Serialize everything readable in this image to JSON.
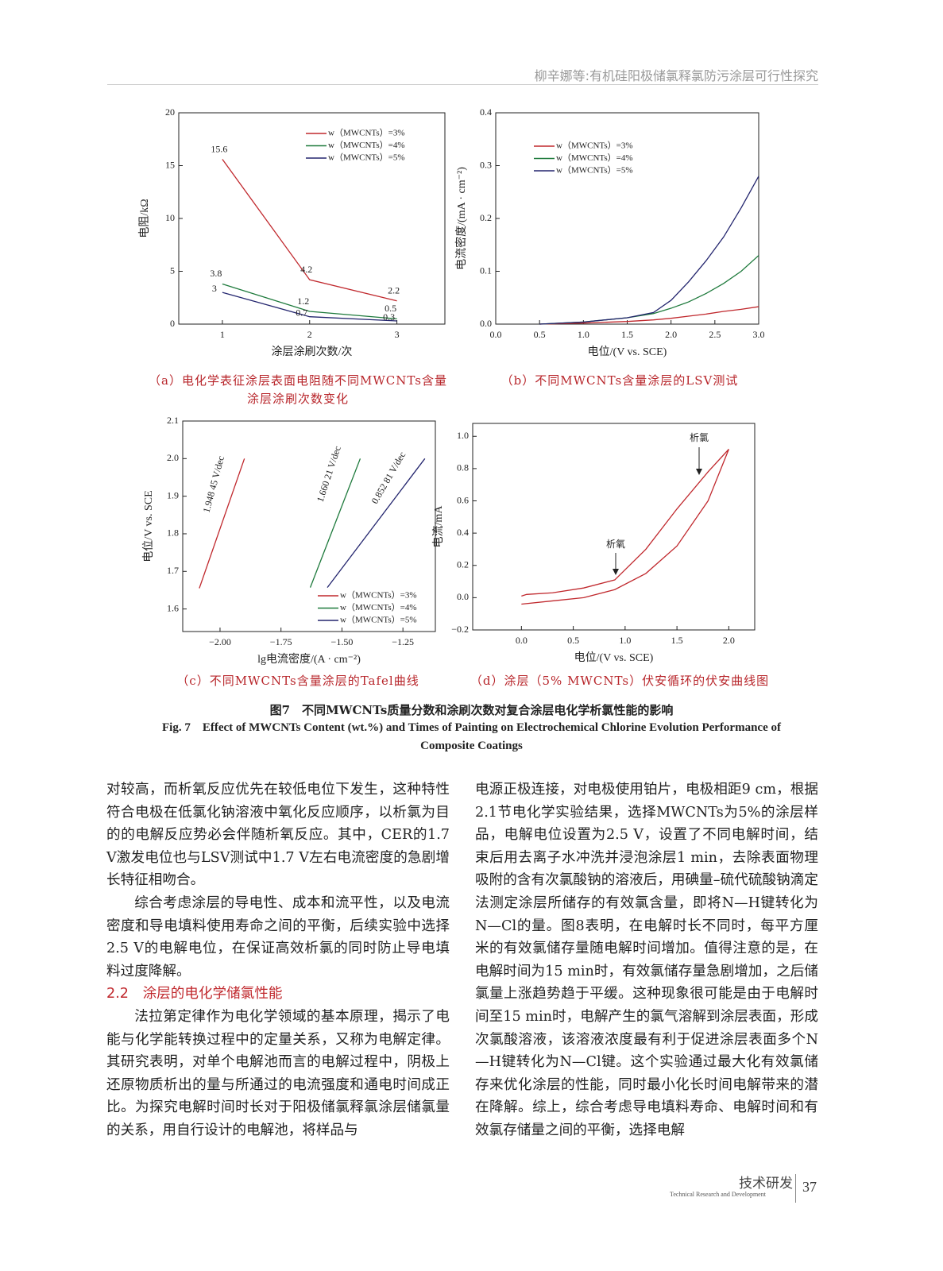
{
  "header": {
    "running_title": "柳辛娜等:有机硅阳极储氯释氯防污涂层可行性探究"
  },
  "chart_data": [
    {
      "type": "line",
      "caption": "（a）电化学表征涂层表面电阻随不同MWCNTs含量涂层涂刷次数变化",
      "x_label": "涂层涂刷次数/次",
      "y_label": "电阻/kΩ",
      "x": [
        1,
        2,
        3
      ],
      "series": [
        {
          "name": "w（MWCNTs）=3%",
          "color": "#c0282d",
          "values": [
            15.6,
            4.2,
            2.2
          ]
        },
        {
          "name": "w（MWCNTs）=4%",
          "color": "#1e7a3c",
          "values": [
            3.8,
            1.2,
            0.5
          ]
        },
        {
          "name": "w（MWCNTs）=5%",
          "color": "#23256e",
          "values": [
            3,
            0.7,
            0.3
          ]
        }
      ],
      "xlim": [
        0.5,
        3.55
      ],
      "xticks": [
        1,
        2,
        3
      ],
      "ylim": [
        0,
        20
      ],
      "yticks": [
        0,
        5,
        10,
        15,
        20
      ],
      "data_labels": true,
      "legend": "upper right"
    },
    {
      "type": "line",
      "caption": "（b）不同MWCNTs含量涂层的LSV测试",
      "x_label": "电位/(V vs. SCE)",
      "y_label": "电流密度/(mA · cm⁻²)",
      "x": [
        0.5,
        1.0,
        1.5,
        1.8,
        2.0,
        2.2,
        2.4,
        2.6,
        2.8,
        3.0
      ],
      "series": [
        {
          "name": "w（MWCNTs）=3%",
          "color": "#c0282d",
          "values": [
            0,
            0.002,
            0.005,
            0.008,
            0.011,
            0.015,
            0.019,
            0.024,
            0.028,
            0.033
          ]
        },
        {
          "name": "w（MWCNTs）=4%",
          "color": "#1e7a3c",
          "values": [
            0,
            0.004,
            0.012,
            0.02,
            0.03,
            0.042,
            0.058,
            0.077,
            0.1,
            0.13
          ]
        },
        {
          "name": "w（MWCNTs）=5%",
          "color": "#23256e",
          "values": [
            0,
            0.004,
            0.012,
            0.022,
            0.045,
            0.08,
            0.12,
            0.165,
            0.22,
            0.28
          ]
        }
      ],
      "xlim": [
        0,
        3
      ],
      "xticks": [
        {
          "value": 0,
          "label": "0.0"
        },
        0.5,
        {
          "value": 1,
          "label": "1.0"
        },
        1.5,
        {
          "value": 2,
          "label": "2.0"
        },
        2.5,
        {
          "value": 3,
          "label": "3.0"
        }
      ],
      "ylim": [
        0,
        0.4
      ],
      "yticks": [
        {
          "value": 0,
          "label": "0.0"
        },
        0.1,
        0.2,
        0.3,
        0.4
      ],
      "legend": "upper left"
    },
    {
      "type": "line",
      "caption": "（c）不同MWCNTs含量涂层的Tafel曲线",
      "x_label": "lg电流密度/(A · cm⁻²)",
      "y_label": "电位/V vs. SCE",
      "series": [
        {
          "name": "w（MWCNTs）=3%",
          "color": "#c0282d",
          "x": [
            -2.085,
            -1.9
          ],
          "values": [
            1.655,
            2.0
          ]
        },
        {
          "name": "w（MWCNTs）=4%",
          "color": "#1e7a3c",
          "x": [
            -1.63,
            -1.425
          ],
          "values": [
            1.657,
            2.0
          ]
        },
        {
          "name": "w（MWCNTs）=5%",
          "color": "#23256e",
          "x": [
            -1.56,
            -1.16
          ],
          "values": [
            1.657,
            2.0
          ]
        }
      ],
      "xlim": [
        -2.153,
        -1.117
      ],
      "xticks": [
        {
          "value": -2,
          "label": "−2.00"
        },
        {
          "value": -1.75,
          "label": "−1.75"
        },
        {
          "value": -1.5,
          "label": "−1.50"
        },
        {
          "value": -1.25,
          "label": "−1.25"
        }
      ],
      "ylim": [
        1.54,
        2.1
      ],
      "yticks": [
        1.6,
        1.7,
        1.8,
        1.9,
        {
          "value": 2,
          "label": "2.0"
        },
        2.1
      ],
      "annotations": [
        "1.948 45 V/dec",
        "1.660 21 V/dec",
        "0.852 81 V/dec"
      ],
      "legend": "lower right"
    },
    {
      "type": "line",
      "caption": "（d）涂层（5% MWCNTs）伏安循环的伏安曲线图",
      "x_label": "电位/(V vs. SCE)",
      "y_label": "电流/mA",
      "series": [
        {
          "color": "#c0282d",
          "x": [
            0,
            0.05,
            0.3,
            0.6,
            0.9,
            1.2,
            1.5,
            1.8,
            2.0,
            1.8,
            1.5,
            1.2,
            0.9,
            0.6,
            0.3,
            0.0
          ],
          "values": [
            0.01,
            0.02,
            0.03,
            0.06,
            0.11,
            0.3,
            0.55,
            0.78,
            0.92,
            0.6,
            0.32,
            0.15,
            0.05,
            0.0,
            -0.02,
            -0.04
          ]
        }
      ],
      "xlim": [
        -0.47,
        2.25
      ],
      "xticks": [
        {
          "value": 0,
          "label": "0.0"
        },
        0.5,
        {
          "value": 1,
          "label": "1.0"
        },
        1.5,
        {
          "value": 2,
          "label": "2.0"
        }
      ],
      "ylim": [
        -0.2,
        1.08
      ],
      "yticks": [
        {
          "value": -0.2,
          "label": "−0.2"
        },
        {
          "value": 0,
          "label": "0.0"
        },
        0.2,
        0.4,
        0.6,
        0.8,
        {
          "value": 1,
          "label": "1.0"
        }
      ],
      "annotations": [
        "析氯",
        "析氧"
      ]
    }
  ],
  "figure_caption": {
    "cn": "图7　不同MWCNTs质量分数和涂刷次数对复合涂层电化学析氯性能的影响",
    "en": "Fig. 7　Effect of MWCNTs Content (wt.%) and Times of Painting on Electrochemical Chlorine Evolution Performance of Composite Coatings"
  },
  "body": {
    "paragraphs": [
      "对较高，而析氧反应优先在较低电位下发生，这种特性符合电极在低氯化钠溶液中氧化反应顺序，以析氯为目的的电解反应势必会伴随析氧反应。其中，CER的1.7 V激发电位也与LSV测试中1.7 V左右电流密度的急剧增长特征相吻合。",
      "综合考虑涂层的导电性、成本和流平性，以及电流密度和导电填料使用寿命之间的平衡，后续实验中选择2.5 V的电解电位，在保证高效析氯的同时防止导电填料过度降解。",
      "法拉第定律作为电化学领域的基本原理，揭示了电能与化学能转换过程中的定量关系，又称为电解定律。其研究表明，对单个电解池而言的电解过程中，阴极上还原物质析出的量与所通过的电流强度和通电时间成正比。为探究电解时间时长对于阳极储氯释氯涂层储氯量的关系，用自行设计的电解池，将样品与",
      "电源正极连接，对电极使用铂片，电极相距9 cm，根据2.1节电化学实验结果，选择MWCNTs为5%的涂层样品，电解电位设置为2.5 V，设置了不同电解时间，结束后用去离子水冲洗并浸泡涂层1 min，去除表面物理吸附的含有次氯酸钠的溶液后，用碘量–硫代硫酸钠滴定法测定涂层所储存的有效氯含量，即将N—H键转化为N—Cl的量。图8表明，在电解时长不同时，每平方厘米的有效氯储存量随电解时间增加。值得注意的是，在电解时间为15 min时，有效氯储存量急剧增加，之后储氯量上涨趋势趋于平缓。这种现象很可能是由于电解时间至15 min时，电解产生的氯气溶解到涂层表面，形成次氯酸溶液，该溶液浓度最有利于促进涂层表面多个N—H键转化为N—Cl键。这个实验通过最大化有效氯储存来优化涂层的性能，同时最小化长时间电解带来的潜在降解。综上，综合考虑导电填料寿命、电解时间和有效氯存储量之间的平衡，选择电解"
    ],
    "section_heading": "2.2　涂层的电化学储氯性能"
  },
  "footer": {
    "section_cn": "技术研发",
    "section_en": "Technical Research and Development",
    "page_number": "37"
  }
}
